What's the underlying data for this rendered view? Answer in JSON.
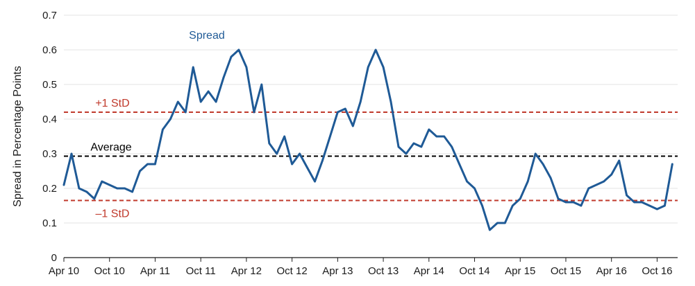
{
  "chart_data": {
    "type": "line",
    "title": "",
    "xlabel": "",
    "ylabel": "Spread in Percentage Points",
    "ylim": [
      0,
      0.7
    ],
    "yticks": [
      "0",
      "0.1",
      "0.2",
      "0.3",
      "0.4",
      "0.5",
      "0.6",
      "0.7"
    ],
    "xticks": [
      "Apr 10",
      "Oct 10",
      "Apr 11",
      "Oct 11",
      "Apr 12",
      "Oct 12",
      "Apr 13",
      "Oct 13",
      "Apr 14",
      "Oct 14",
      "Apr 15",
      "Oct 15",
      "Apr 16",
      "Oct 16"
    ],
    "grid": "horizontal",
    "series": [
      {
        "name": "Spread",
        "color": "#1f5a96",
        "x": [
          "Apr 10",
          "May 10",
          "Jun 10",
          "Jul 10",
          "Aug 10",
          "Sep 10",
          "Oct 10",
          "Nov 10",
          "Dec 10",
          "Jan 11",
          "Feb 11",
          "Mar 11",
          "Apr 11",
          "May 11",
          "Jun 11",
          "Jul 11",
          "Aug 11",
          "Sep 11",
          "Oct 11",
          "Nov 11",
          "Dec 11",
          "Jan 12",
          "Feb 12",
          "Mar 12",
          "Apr 12",
          "May 12",
          "Jun 12",
          "Jul 12",
          "Aug 12",
          "Sep 12",
          "Oct 12",
          "Nov 12",
          "Dec 12",
          "Jan 13",
          "Feb 13",
          "Mar 13",
          "Apr 13",
          "May 13",
          "Jun 13",
          "Jul 13",
          "Aug 13",
          "Sep 13",
          "Oct 13",
          "Nov 13",
          "Dec 13",
          "Jan 14",
          "Feb 14",
          "Mar 14",
          "Apr 14",
          "May 14",
          "Jun 14",
          "Jul 14",
          "Aug 14",
          "Sep 14",
          "Oct 14",
          "Nov 14",
          "Dec 14",
          "Jan 15",
          "Feb 15",
          "Mar 15",
          "Apr 15",
          "May 15",
          "Jun 15",
          "Jul 15",
          "Aug 15",
          "Sep 15",
          "Oct 15",
          "Nov 15",
          "Dec 15",
          "Jan 16",
          "Feb 16",
          "Mar 16",
          "Apr 16",
          "May 16",
          "Jun 16",
          "Jul 16",
          "Aug 16",
          "Sep 16",
          "Oct 16",
          "Nov 16",
          "Dec 16"
        ],
        "values": [
          0.21,
          0.3,
          0.2,
          0.19,
          0.17,
          0.22,
          0.21,
          0.2,
          0.2,
          0.19,
          0.25,
          0.27,
          0.27,
          0.37,
          0.4,
          0.45,
          0.42,
          0.55,
          0.45,
          0.48,
          0.45,
          0.52,
          0.58,
          0.6,
          0.55,
          0.42,
          0.5,
          0.33,
          0.3,
          0.35,
          0.27,
          0.3,
          0.26,
          0.22,
          0.28,
          0.35,
          0.42,
          0.43,
          0.38,
          0.45,
          0.55,
          0.6,
          0.55,
          0.45,
          0.32,
          0.3,
          0.33,
          0.32,
          0.37,
          0.35,
          0.35,
          0.32,
          0.27,
          0.22,
          0.2,
          0.15,
          0.08,
          0.1,
          0.1,
          0.15,
          0.17,
          0.22,
          0.3,
          0.27,
          0.23,
          0.17,
          0.16,
          0.16,
          0.15,
          0.2,
          0.21,
          0.22,
          0.24,
          0.28,
          0.18,
          0.16,
          0.16,
          0.15,
          0.14,
          0.15,
          0.27
        ]
      }
    ],
    "reference_lines": [
      {
        "label": "+1 StD",
        "value": 0.42,
        "color": "#c0392b",
        "style": "dashed"
      },
      {
        "label": "Average",
        "value": 0.293,
        "color": "#000000",
        "style": "dashed"
      },
      {
        "label": "–1 StD",
        "value": 0.165,
        "color": "#c0392b",
        "style": "dashed"
      }
    ],
    "colors": {
      "series": "#1f5a96",
      "std": "#c0392b",
      "avg": "#000000",
      "grid": "#e3e3e3",
      "axis": "#1a1a1a"
    }
  }
}
